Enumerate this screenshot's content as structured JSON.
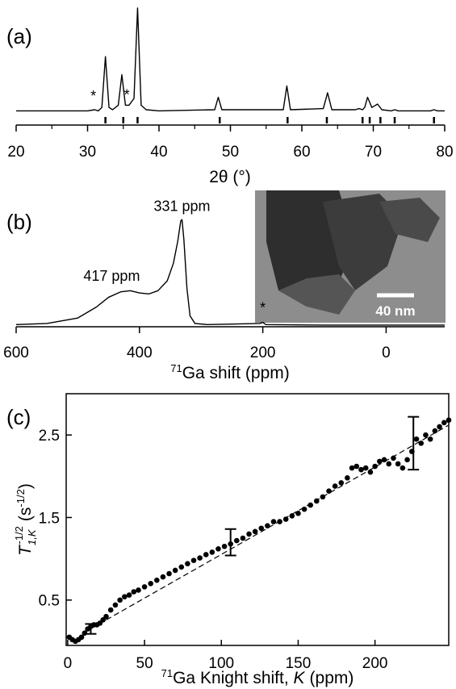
{
  "chart_data": [
    {
      "type": "line",
      "panel_label": "(a)",
      "xlabel": "2θ (°)",
      "x": [
        20,
        30,
        31,
        31.5,
        32,
        32.5,
        33,
        33.5,
        34.3,
        34.8,
        35.3,
        35.8,
        36.5,
        37,
        37.5,
        38.2,
        40,
        47.8,
        48.3,
        48.8,
        57.4,
        57.9,
        58.4,
        63,
        63.6,
        64.2,
        67.5,
        68,
        68.5,
        68.8,
        69.2,
        69.8,
        70.6,
        71.2,
        72.5,
        73,
        73.5,
        78,
        78.5,
        79,
        80
      ],
      "values": [
        9,
        9,
        10,
        9,
        12,
        57,
        12,
        10,
        14,
        41,
        14,
        14,
        20,
        100,
        14,
        10,
        9,
        10,
        21,
        10,
        10,
        31,
        10,
        11,
        25,
        10,
        10,
        11,
        10,
        12,
        21,
        12,
        15,
        10,
        9,
        10,
        9,
        9,
        10,
        9,
        9
      ],
      "color": "#000000",
      "xlim": [
        20,
        80
      ],
      "ylim": [
        0,
        100
      ],
      "xticks": [
        20,
        30,
        40,
        50,
        60,
        70,
        80
      ],
      "xminorticks": [
        25,
        35,
        45,
        55,
        65,
        75
      ],
      "reference_ticks": [
        32.5,
        35,
        37,
        48.5,
        58,
        63.5,
        68.5,
        69.5,
        71,
        73,
        78.5
      ],
      "annotations": [
        {
          "text": "*",
          "x": 30.8,
          "y": 18
        },
        {
          "text": "*",
          "x": 35.5,
          "y": 19
        }
      ]
    },
    {
      "type": "line",
      "panel_label": "(b)",
      "xlabel": {
        "sup": "71",
        "text": "Ga shift (ppm)"
      },
      "x": [
        600,
        550,
        500,
        470,
        450,
        430,
        415,
        400,
        385,
        370,
        355,
        345,
        338,
        333,
        331,
        328,
        323,
        318,
        310,
        290,
        205,
        200,
        195,
        100,
        0,
        -95
      ],
      "values": [
        2,
        3,
        8,
        18,
        27,
        32,
        33,
        31,
        30,
        33,
        42,
        58,
        78,
        97,
        98,
        80,
        35,
        10,
        3,
        2,
        3,
        4,
        2,
        1.5,
        1.5,
        1.5
      ],
      "color": "#000000",
      "xlim": [
        600,
        -95
      ],
      "ylim": [
        0,
        110
      ],
      "xticks": [
        600,
        400,
        200,
        0
      ],
      "annotations": [
        {
          "text": "417 ppm",
          "x": 445,
          "y": 42
        },
        {
          "text": "331 ppm",
          "x": 331,
          "y": 106
        },
        {
          "text": "*",
          "x": 200,
          "y": 13
        }
      ],
      "inset": {
        "scale_label": "40 nm"
      }
    },
    {
      "type": "scatter",
      "panel_label": "(c)",
      "xlabel": {
        "sup": "71",
        "text": "Ga Knight shift, ",
        "symbol": "K",
        "unit": "(ppm)"
      },
      "ylabel": {
        "symbol": "T",
        "sub": "1,K",
        "sup": "-1/2",
        "unit": "(s",
        "unit_sup": "-1/2",
        "unit_close": ")"
      },
      "x": [
        1,
        3,
        5,
        7,
        9,
        11,
        13,
        15,
        17,
        19,
        21,
        23,
        25,
        28,
        31,
        34,
        37,
        40,
        43,
        46,
        50,
        54,
        58,
        62,
        66,
        70,
        74,
        78,
        82,
        86,
        90,
        94,
        98,
        102,
        106,
        110,
        114,
        118,
        122,
        126,
        130,
        134,
        138,
        142,
        146,
        150,
        154,
        158,
        162,
        166,
        170,
        174,
        178,
        182,
        185,
        188,
        191,
        194,
        197,
        200,
        203,
        206,
        209,
        212,
        215,
        218,
        221,
        224,
        227,
        230,
        233,
        236,
        239,
        242,
        245,
        248
      ],
      "values": [
        0.05,
        0.02,
        0,
        0.02,
        0.05,
        0.1,
        0.15,
        0.18,
        0.2,
        0.2,
        0.22,
        0.26,
        0.3,
        0.38,
        0.44,
        0.5,
        0.54,
        0.56,
        0.6,
        0.62,
        0.66,
        0.7,
        0.74,
        0.78,
        0.82,
        0.86,
        0.9,
        0.94,
        0.98,
        1.01,
        1.05,
        1.08,
        1.12,
        1.15,
        1.18,
        1.22,
        1.25,
        1.3,
        1.33,
        1.37,
        1.4,
        1.45,
        1.45,
        1.48,
        1.52,
        1.55,
        1.6,
        1.65,
        1.7,
        1.75,
        1.82,
        1.88,
        1.92,
        1.98,
        2.1,
        2.12,
        2.08,
        2.1,
        2.05,
        2.12,
        2.18,
        2.2,
        2.15,
        2.22,
        2.15,
        2.1,
        2.2,
        2.3,
        2.45,
        2.4,
        2.5,
        2.45,
        2.55,
        2.6,
        2.65,
        2.68
      ],
      "color": "#000000",
      "xlim": [
        -1,
        248
      ],
      "ylim": [
        -0.05,
        3.0
      ],
      "xticks": [
        0,
        50,
        100,
        150,
        200
      ],
      "yticks": [
        0.5,
        1.5,
        2.5
      ],
      "error_bars": [
        {
          "x": 15,
          "y": 0.15,
          "err": 0.06
        },
        {
          "x": 106,
          "y": 1.2,
          "err": 0.16
        },
        {
          "x": 225,
          "y": 2.4,
          "err": 0.32
        }
      ],
      "fit": {
        "x": [
          10,
          248
        ],
        "y": [
          0.1,
          2.62
        ]
      }
    }
  ]
}
